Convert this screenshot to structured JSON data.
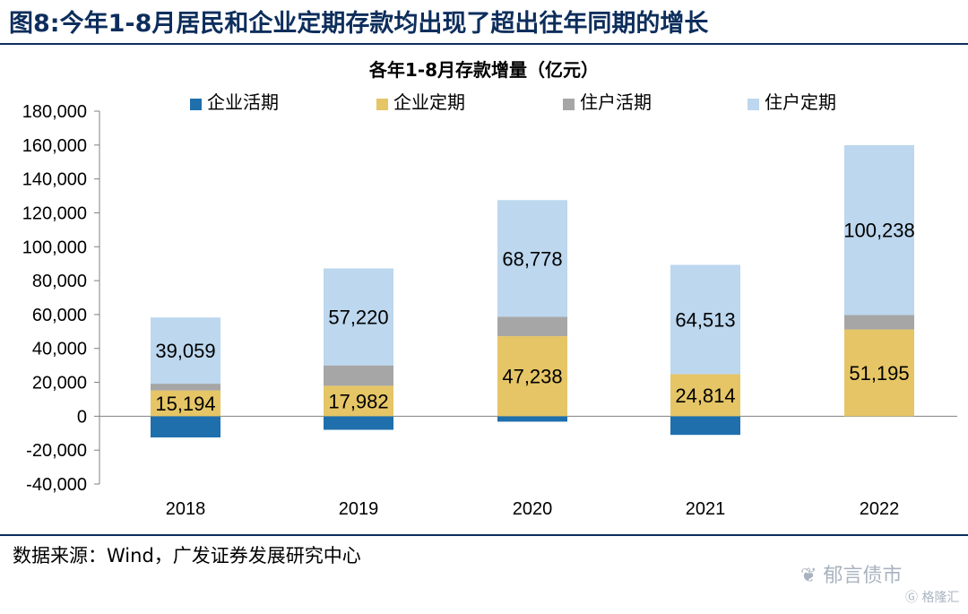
{
  "figure": {
    "label": "图8:",
    "title": "今年1-8月居民和企业定期存款均出现了超出往年同期的增长",
    "source": "数据来源：Wind，广发证券发展研究中心"
  },
  "watermarks": {
    "wechat": "郁言债市",
    "site": "格隆汇"
  },
  "colors": {
    "corp_demand": "#1f6fad",
    "corp_time": "#e5c566",
    "hh_demand": "#a6a6a6",
    "hh_time": "#bcd7ee",
    "brand": "#0d2e5c"
  },
  "chart_data": {
    "type": "bar",
    "stacked": true,
    "title": "各年1-8月存款增量（亿元）",
    "categories": [
      "2018",
      "2019",
      "2020",
      "2021",
      "2022"
    ],
    "series": [
      {
        "name": "企业活期",
        "color": "#1f6fad",
        "values": [
          -12500,
          -8000,
          -3200,
          -11000,
          0
        ]
      },
      {
        "name": "企业定期",
        "color": "#e5c566",
        "values": [
          15194,
          17982,
          47238,
          24814,
          51195
        ]
      },
      {
        "name": "住户活期",
        "color": "#a6a6a6",
        "values": [
          4000,
          12000,
          11500,
          0,
          8500
        ]
      },
      {
        "name": "住户定期",
        "color": "#bcd7ee",
        "values": [
          39059,
          57220,
          68778,
          64513,
          100238
        ]
      }
    ],
    "data_labels": {
      "企业定期": [
        "15,194",
        "17,982",
        "47,238",
        "24,814",
        "51,195"
      ],
      "住户定期": [
        "39,059",
        "57,220",
        "68,778",
        "64,513",
        "100,238"
      ]
    },
    "ylim": [
      -40000,
      180000
    ],
    "yticks": [
      -40000,
      -20000,
      0,
      20000,
      40000,
      60000,
      80000,
      100000,
      120000,
      140000,
      160000,
      180000
    ],
    "ytick_labels": [
      "-40,000",
      "-20,000",
      "0",
      "20,000",
      "40,000",
      "60,000",
      "80,000",
      "100,000",
      "120,000",
      "140,000",
      "160,000",
      "180,000"
    ],
    "grid": false,
    "legend_position": "top"
  }
}
